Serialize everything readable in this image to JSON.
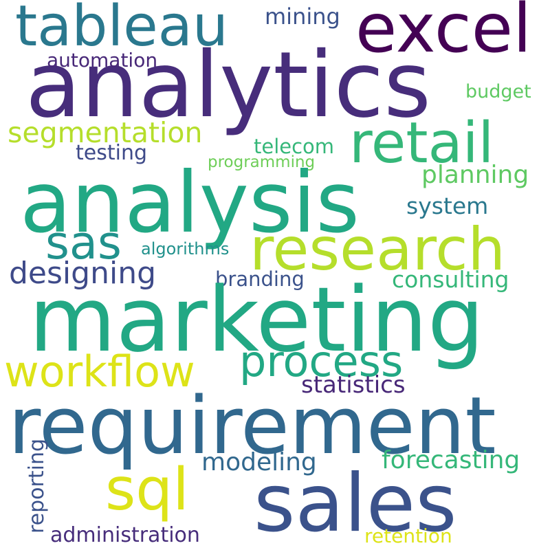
{
  "word_cloud": {
    "background": "#ffffff",
    "words": [
      {
        "id": "tableau",
        "text": "tableau",
        "color": "#2a788e"
      },
      {
        "id": "excel",
        "text": "excel",
        "color": "#440154"
      },
      {
        "id": "mining",
        "text": "mining",
        "color": "#3b528b"
      },
      {
        "id": "analytics",
        "text": "analytics",
        "color": "#472d7b"
      },
      {
        "id": "automation",
        "text": "automation",
        "color": "#482878"
      },
      {
        "id": "budget",
        "text": "budget",
        "color": "#5ec962"
      },
      {
        "id": "segmentation",
        "text": "segmentation",
        "color": "#b5de2b"
      },
      {
        "id": "retail",
        "text": "retail",
        "color": "#35b779"
      },
      {
        "id": "testing",
        "text": "testing",
        "color": "#3e4a89"
      },
      {
        "id": "telecom",
        "text": "telecom",
        "color": "#35b779"
      },
      {
        "id": "programming",
        "text": "programming",
        "color": "#6ece58"
      },
      {
        "id": "planning",
        "text": "planning",
        "color": "#5ec962"
      },
      {
        "id": "analysis",
        "text": "analysis",
        "color": "#22a884"
      },
      {
        "id": "system",
        "text": "system",
        "color": "#2a788e"
      },
      {
        "id": "sas",
        "text": "sas",
        "color": "#21918c"
      },
      {
        "id": "research",
        "text": "research",
        "color": "#b5de2b"
      },
      {
        "id": "algorithms",
        "text": "algorithms",
        "color": "#21918c"
      },
      {
        "id": "designing",
        "text": "designing",
        "color": "#3e4a89"
      },
      {
        "id": "branding",
        "text": "branding",
        "color": "#3b528b"
      },
      {
        "id": "consulting",
        "text": "consulting",
        "color": "#35b779"
      },
      {
        "id": "marketing",
        "text": "marketing",
        "color": "#22a884"
      },
      {
        "id": "workflow",
        "text": "workflow",
        "color": "#dde318"
      },
      {
        "id": "process",
        "text": "process",
        "color": "#22a884"
      },
      {
        "id": "statistics",
        "text": "statistics",
        "color": "#482878"
      },
      {
        "id": "requirement",
        "text": "requirement",
        "color": "#31688e"
      },
      {
        "id": "reporting",
        "text": "reporting",
        "color": "#3b528b"
      },
      {
        "id": "modeling",
        "text": "modeling",
        "color": "#31688e"
      },
      {
        "id": "forecasting",
        "text": "forecasting",
        "color": "#35b779"
      },
      {
        "id": "sql",
        "text": "sql",
        "color": "#dde318"
      },
      {
        "id": "sales",
        "text": "sales",
        "color": "#3b528b"
      },
      {
        "id": "administration",
        "text": "administration",
        "color": "#472d7b"
      },
      {
        "id": "retention",
        "text": "retention",
        "color": "#dde318"
      }
    ]
  }
}
